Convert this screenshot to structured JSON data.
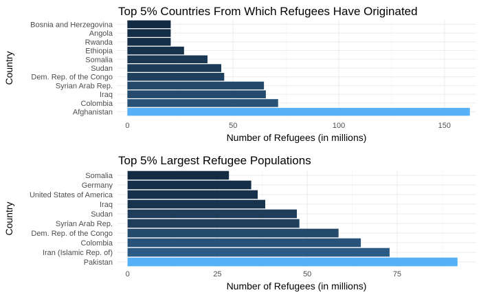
{
  "chart_data": [
    {
      "type": "bar",
      "orientation": "horizontal",
      "title": "Top 5% Countries From Which Refugees Have Originated",
      "xlabel": "Number of Refugees (in millions)",
      "ylabel": "Country",
      "categories": [
        "Bosnia and Herzegovina",
        "Angola",
        "Rwanda",
        "Ethiopia",
        "Somalia",
        "Sudan",
        "Dem. Rep. of the Congo",
        "Syrian Arab Rep.",
        "Iraq",
        "Colombia",
        "Afghanistan"
      ],
      "values": [
        20.5,
        20.5,
        20.5,
        26.8,
        37.9,
        44.4,
        45.8,
        64.6,
        65.5,
        71.3,
        162.0
      ],
      "xlim": [
        -5,
        165
      ],
      "xticks": [
        0,
        50,
        100,
        150
      ],
      "grid": true,
      "colors": [
        "#132b43",
        "#142d46",
        "#152f48",
        "#17324c",
        "#1a3753",
        "#1c3b58",
        "#1e3f5d",
        "#23486a",
        "#244b6e",
        "#275275",
        "#56b1f7"
      ]
    },
    {
      "type": "bar",
      "orientation": "horizontal",
      "title": "Top 5% Largest Refugee Populations",
      "xlabel": "Number of Refugees (in millions)",
      "ylabel": "Country",
      "categories": [
        "Somalia",
        "Germany",
        "United States of America",
        "Iraq",
        "Sudan",
        "Syrian Arab Rep.",
        "Dem. Rep. of the Congo",
        "Colombia",
        "Iran (Islamic Rep. of)",
        "Pakistan"
      ],
      "values": [
        28.2,
        34.4,
        36.2,
        38.3,
        47.1,
        47.8,
        58.7,
        64.9,
        72.9,
        91.8
      ],
      "xlim": [
        -3,
        97
      ],
      "xticks": [
        0,
        25,
        50,
        75
      ],
      "grid": true,
      "colors": [
        "#132b43",
        "#162f49",
        "#17314c",
        "#18334e",
        "#1e3d5a",
        "#1e3e5c",
        "#244b6c",
        "#28527a",
        "#2c5b85",
        "#56b1f7"
      ]
    }
  ]
}
